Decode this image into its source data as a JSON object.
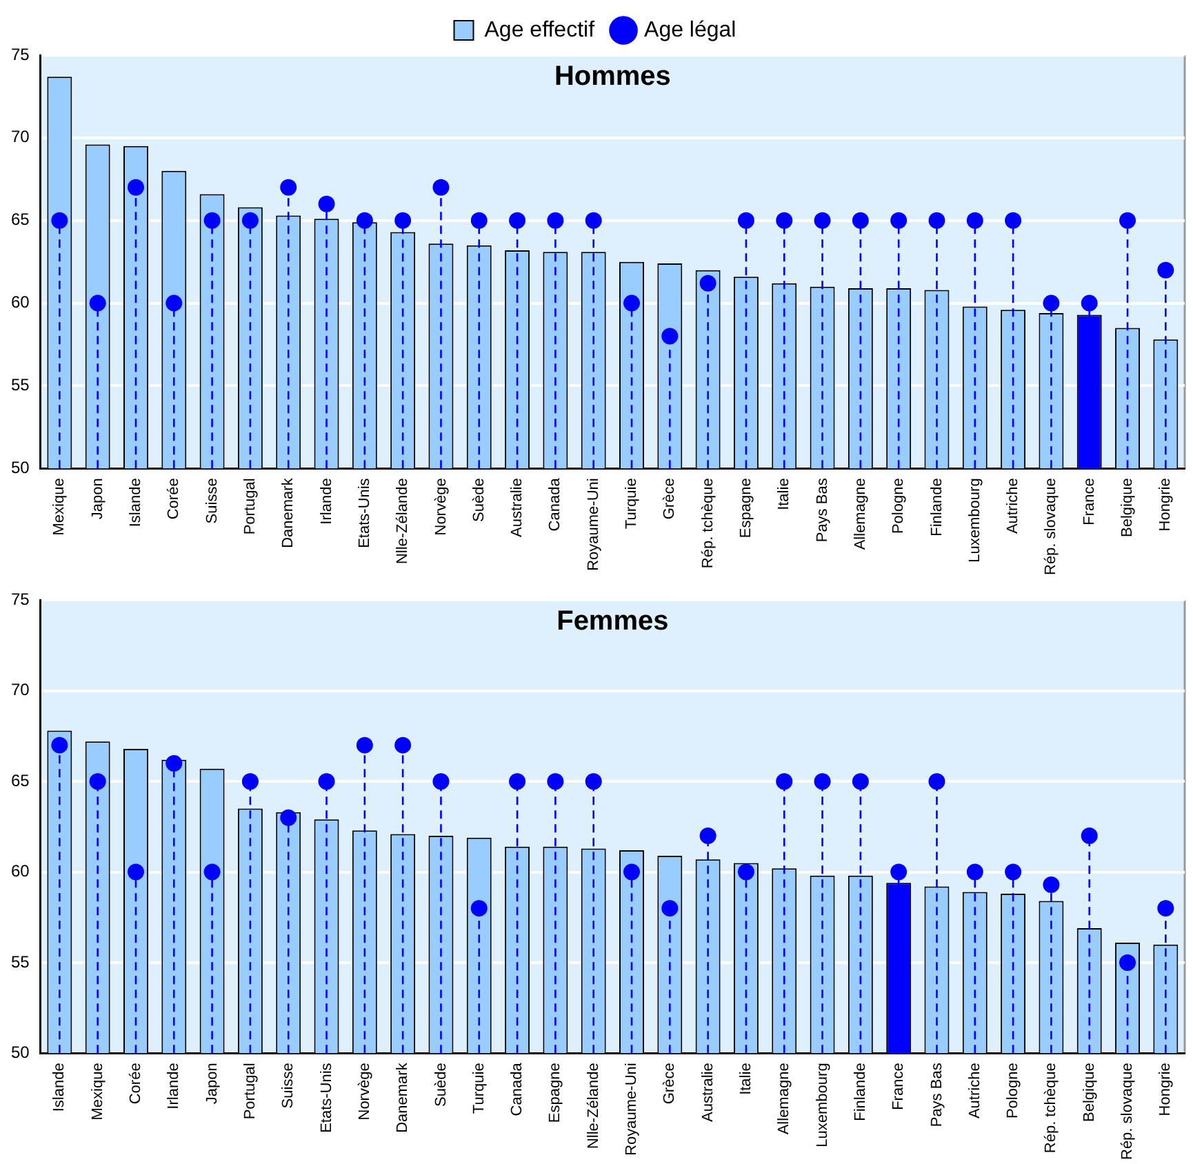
{
  "chart_data": [
    {
      "type": "bar",
      "title": "Hommes",
      "categories": [
        "Mexique",
        "Japon",
        "Islande",
        "Corée",
        "Suisse",
        "Portugal",
        "Danemark",
        "Irlande",
        "Etats-Unis",
        "Nlle-Zélande",
        "Norvège",
        "Suède",
        "Australie",
        "Canada",
        "Royaume-Uni",
        "Turquie",
        "Grèce",
        "Rép. tchèque",
        "Espagne",
        "Italie",
        "Pays Bas",
        "Allemagne",
        "Pologne",
        "Finlande",
        "Luxembourg",
        "Autriche",
        "Rép. slovaque",
        "France",
        "Belgique",
        "Hongrie"
      ],
      "series": [
        {
          "name": "Age effectif",
          "type": "bar",
          "color": "#99ccff",
          "colors": [
            "#99ccff",
            "#99ccff",
            "#99ccff",
            "#99ccff",
            "#99ccff",
            "#99ccff",
            "#99ccff",
            "#99ccff",
            "#99ccff",
            "#99ccff",
            "#99ccff",
            "#99ccff",
            "#99ccff",
            "#99ccff",
            "#99ccff",
            "#99ccff",
            "#99ccff",
            "#99ccff",
            "#99ccff",
            "#99ccff",
            "#99ccff",
            "#99ccff",
            "#99ccff",
            "#99ccff",
            "#99ccff",
            "#99ccff",
            "#99ccff",
            "#0000ff",
            "#99ccff",
            "#99ccff"
          ],
          "values": [
            73.7,
            69.6,
            69.5,
            68.0,
            66.6,
            65.8,
            65.3,
            65.1,
            64.9,
            64.3,
            63.6,
            63.5,
            63.2,
            63.1,
            63.1,
            62.5,
            62.4,
            62.0,
            61.6,
            61.2,
            61.0,
            60.9,
            60.9,
            60.8,
            59.8,
            59.6,
            59.4,
            59.3,
            58.5,
            57.8
          ]
        },
        {
          "name": "Age légal",
          "type": "lollipop",
          "color": "#0000ff",
          "marker": "circle",
          "line_style": "dashed",
          "values": [
            65,
            60,
            67,
            60,
            65,
            65,
            67,
            66,
            65,
            65,
            67,
            65,
            65,
            65,
            65,
            60,
            58,
            61.2,
            65,
            65,
            65,
            65,
            65,
            65,
            65,
            65,
            60,
            60,
            65,
            62
          ]
        }
      ],
      "ylim": [
        50,
        75
      ],
      "yticks": [
        50,
        55,
        60,
        65,
        70,
        75
      ],
      "grid": "y",
      "legend": "top"
    },
    {
      "type": "bar",
      "title": "Femmes",
      "categories": [
        "Islande",
        "Mexique",
        "Corée",
        "Irlande",
        "Japon",
        "Portugal",
        "Suisse",
        "Etats-Unis",
        "Norvège",
        "Danemark",
        "Suède",
        "Turquie",
        "Canada",
        "Espagne",
        "Nlle-Zélande",
        "Royaume-Uni",
        "Grèce",
        "Australie",
        "Italie",
        "Allemagne",
        "Luxembourg",
        "Finlande",
        "France",
        "Pays Bas",
        "Autriche",
        "Pologne",
        "Rép. tchèque",
        "Belgique",
        "Rép. slovaque",
        "Hongrie"
      ],
      "series": [
        {
          "type": "bar",
          "color": "#99ccff",
          "colors": [
            "#99ccff",
            "#99ccff",
            "#99ccff",
            "#99ccff",
            "#99ccff",
            "#99ccff",
            "#99ccff",
            "#99ccff",
            "#99ccff",
            "#99ccff",
            "#99ccff",
            "#99ccff",
            "#99ccff",
            "#99ccff",
            "#99ccff",
            "#99ccff",
            "#99ccff",
            "#99ccff",
            "#99ccff",
            "#99ccff",
            "#99ccff",
            "#99ccff",
            "#0000ff",
            "#99ccff",
            "#99ccff",
            "#99ccff",
            "#99ccff",
            "#99ccff",
            "#99ccff",
            "#99ccff"
          ],
          "values": [
            67.8,
            67.2,
            66.8,
            66.2,
            65.7,
            63.5,
            63.3,
            62.9,
            62.3,
            62.1,
            62.0,
            61.9,
            61.4,
            61.4,
            61.3,
            61.2,
            60.9,
            60.7,
            60.5,
            60.2,
            59.8,
            59.8,
            59.4,
            59.2,
            58.9,
            58.8,
            58.4,
            56.9,
            56.1,
            56.0
          ]
        },
        {
          "type": "lollipop",
          "color": "#0000ff",
          "marker": "circle",
          "line_style": "dashed",
          "values": [
            67,
            65,
            60,
            66,
            60,
            65,
            63,
            65,
            67,
            67,
            65,
            58,
            65,
            65,
            65,
            60,
            58,
            62,
            60,
            65,
            65,
            65,
            60,
            65,
            60,
            60,
            59.3,
            62,
            55,
            58
          ]
        }
      ],
      "ylim": [
        50,
        75
      ],
      "yticks": [
        50,
        55,
        60,
        65,
        70,
        75
      ],
      "grid": "y",
      "legend": false
    }
  ]
}
